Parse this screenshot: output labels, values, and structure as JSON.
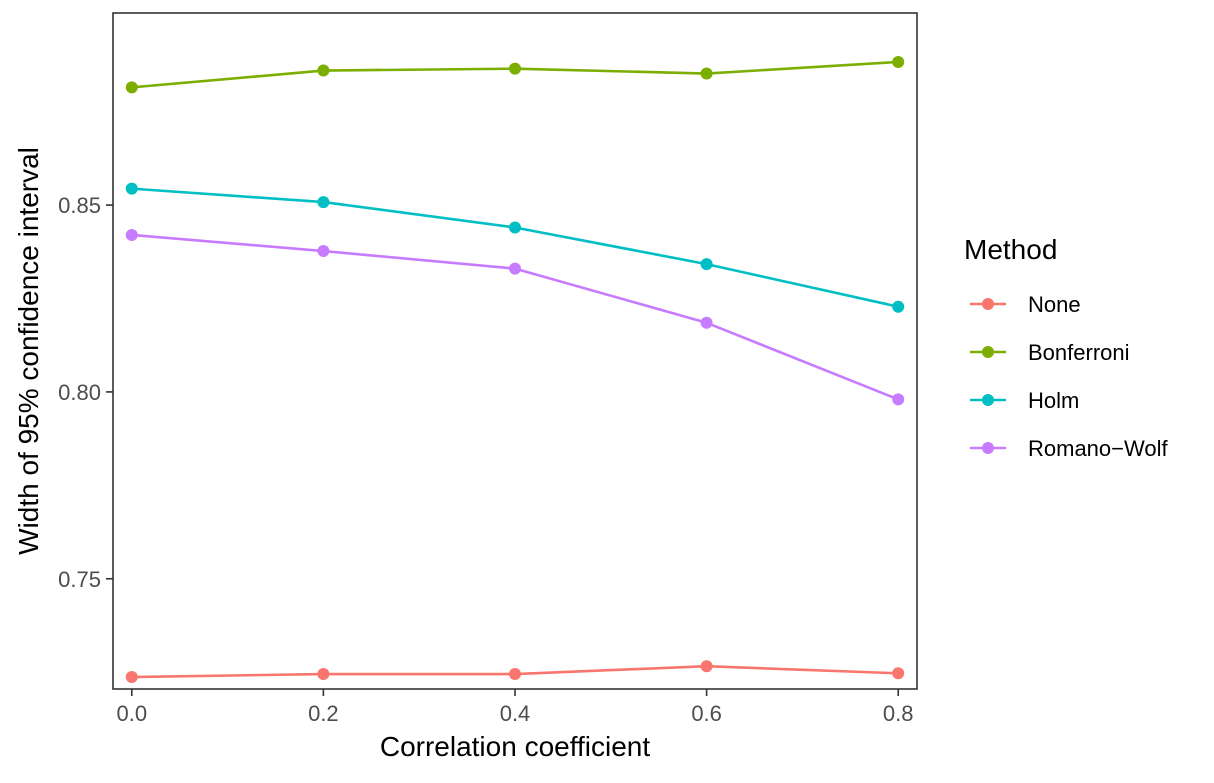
{
  "chart_data": {
    "type": "line",
    "title": "",
    "xlabel": "Correlation coefficient",
    "ylabel": "Width of 95% confidence interval",
    "x": [
      0.0,
      0.2,
      0.4,
      0.6,
      0.8
    ],
    "xlim": [
      -0.0196,
      0.8196
    ],
    "ylim": [
      0.7205,
      0.9014
    ],
    "x_ticks": [
      0.0,
      0.2,
      0.4,
      0.6,
      0.8
    ],
    "x_tick_labels": [
      "0.0",
      "0.2",
      "0.4",
      "0.6",
      "0.8"
    ],
    "y_ticks": [
      0.75,
      0.8,
      0.85
    ],
    "y_tick_labels": [
      "0.75",
      "0.80",
      "0.85"
    ],
    "grid": false,
    "legend": {
      "title": "Method",
      "placement": "right"
    },
    "series": [
      {
        "name": "None",
        "color": "#F8766D",
        "values": [
          0.7237,
          0.7245,
          0.7245,
          0.7266,
          0.7247
        ]
      },
      {
        "name": "Bonferroni",
        "color": "#7CAE00",
        "values": [
          0.8815,
          0.886,
          0.8865,
          0.8852,
          0.8883
        ]
      },
      {
        "name": "Holm",
        "color": "#00BFC4",
        "values": [
          0.8544,
          0.8508,
          0.844,
          0.8342,
          0.8228
        ]
      },
      {
        "name": "Romano−Wolf",
        "color": "#C77CFF",
        "values": [
          0.842,
          0.8377,
          0.833,
          0.8185,
          0.798
        ]
      }
    ]
  }
}
